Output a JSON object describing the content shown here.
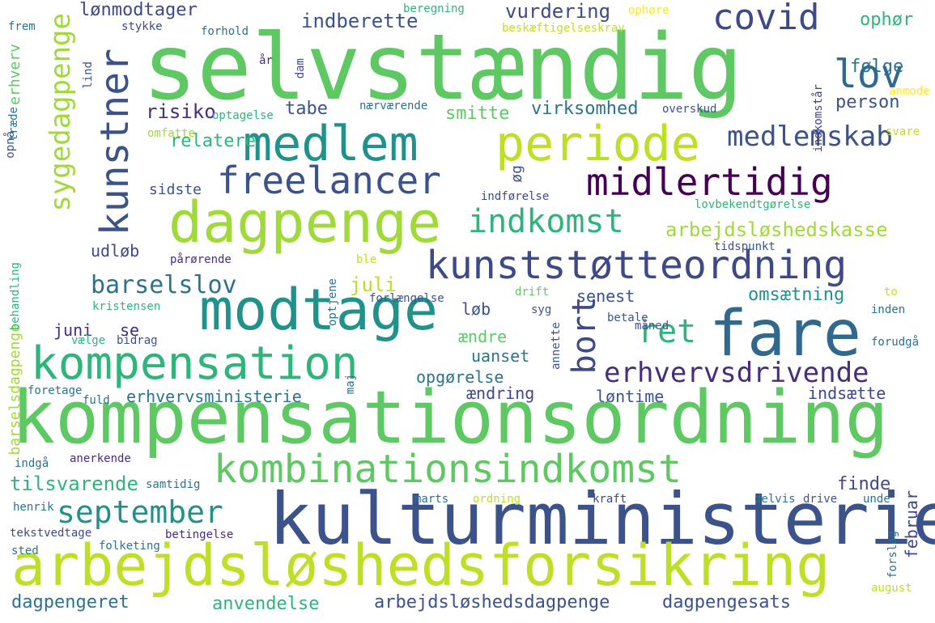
{
  "words": [
    {
      "t": "selvstændig",
      "c": "#5ec962"
    },
    {
      "t": "kompensationsordning",
      "c": "#5ec962"
    },
    {
      "t": "kulturministerie",
      "c": "#3b528b"
    },
    {
      "t": "arbejdsløshedsforsikring",
      "c": "#bddf26"
    },
    {
      "t": "modtage",
      "c": "#21918c"
    },
    {
      "t": "fare",
      "c": "#31688e"
    },
    {
      "t": "dagpenge",
      "c": "#a0da39"
    },
    {
      "t": "medlem",
      "c": "#21918c"
    },
    {
      "t": "periode",
      "c": "#bddf26"
    },
    {
      "t": "kombinationsindkomst",
      "c": "#5ec962"
    },
    {
      "t": "kunststøtteordning",
      "c": "#3e4989"
    },
    {
      "t": "kompensation",
      "c": "#2fb47c"
    },
    {
      "t": "freelancer",
      "c": "#3b528b"
    },
    {
      "t": "midlertidig",
      "c": "#440154"
    },
    {
      "t": "covid",
      "c": "#3e4989"
    },
    {
      "t": "lov",
      "c": "#31688e"
    },
    {
      "t": "kunstner",
      "c": "#3b528b"
    },
    {
      "t": "sygedagpenge",
      "c": "#a0da39"
    },
    {
      "t": "september",
      "c": "#21918c"
    },
    {
      "t": "erhvervsdrivende",
      "c": "#472d7b"
    },
    {
      "t": "medlemskab",
      "c": "#3b528b"
    },
    {
      "t": "indkomst",
      "c": "#2fb47c"
    },
    {
      "t": "barselslov",
      "c": "#2c728e"
    },
    {
      "t": "ret",
      "c": "#2fb47c"
    },
    {
      "t": "bort",
      "c": "#3e4989"
    },
    {
      "t": "arbejdsløshedskasse",
      "c": "#a0da39"
    },
    {
      "t": "tilsvarende",
      "c": "#2fb47c"
    },
    {
      "t": "arbejdsløshedsdagpenge",
      "c": "#3b528b"
    },
    {
      "t": "dagpengesats",
      "c": "#3b528b"
    },
    {
      "t": "dagpengeret",
      "c": "#2c728e"
    },
    {
      "t": "anvendelse",
      "c": "#2fb47c"
    },
    {
      "t": "erhvervsministerie",
      "c": "#2c728e"
    },
    {
      "t": "vurdering",
      "c": "#3e4989"
    },
    {
      "t": "indberette",
      "c": "#3b528b"
    },
    {
      "t": "lønmodtager",
      "c": "#3e4989"
    },
    {
      "t": "virksomhed",
      "c": "#2c728e"
    },
    {
      "t": "risiko",
      "c": "#472d7b"
    },
    {
      "t": "tabe",
      "c": "#3b528b"
    },
    {
      "t": "smitte",
      "c": "#5ec962"
    },
    {
      "t": "relatere",
      "c": "#2fb47c"
    },
    {
      "t": "sidste",
      "c": "#3b528b"
    },
    {
      "t": "udløb",
      "c": "#3e4989"
    },
    {
      "t": "juli",
      "c": "#bddf26"
    },
    {
      "t": "løb",
      "c": "#3b528b"
    },
    {
      "t": "senest",
      "c": "#3b528b"
    },
    {
      "t": "omsætning",
      "c": "#21918c"
    },
    {
      "t": "juni",
      "c": "#472d7b"
    },
    {
      "t": "se",
      "c": "#472d7b"
    },
    {
      "t": "ændre",
      "c": "#5ec962"
    },
    {
      "t": "uanset",
      "c": "#2c728e"
    },
    {
      "t": "opgørelse",
      "c": "#2c728e"
    },
    {
      "t": "ændring",
      "c": "#3e4989"
    },
    {
      "t": "løntime",
      "c": "#3b528b"
    },
    {
      "t": "indsætte",
      "c": "#3e4989"
    },
    {
      "t": "finde",
      "c": "#3e4989"
    },
    {
      "t": "februar",
      "c": "#3e4989"
    },
    {
      "t": "ophør",
      "c": "#2fb47c"
    },
    {
      "t": "følge",
      "c": "#2c728e"
    },
    {
      "t": "person",
      "c": "#3b528b"
    },
    {
      "t": "barselsdagpenge",
      "c": "#a0da39"
    },
    {
      "t": "erhverv",
      "c": "#5ec962"
    },
    {
      "t": "beregning",
      "c": "#2fb47c"
    },
    {
      "t": "ophøre",
      "c": "#fde725"
    },
    {
      "t": "stykke",
      "c": "#3e4989"
    },
    {
      "t": "forhold",
      "c": "#2c728e"
    },
    {
      "t": "beskæftigelseskrav",
      "c": "#bddf26"
    },
    {
      "t": "frem",
      "c": "#2c728e"
    },
    {
      "t": "lind",
      "c": "#3b528b"
    },
    {
      "t": "år",
      "c": "#472d7b"
    },
    {
      "t": "dam",
      "c": "#3e4989"
    },
    {
      "t": "optagelse",
      "c": "#2fb47c"
    },
    {
      "t": "nærværende",
      "c": "#2c728e"
    },
    {
      "t": "overskud",
      "c": "#3b528b"
    },
    {
      "t": "anmode",
      "c": "#fde725"
    },
    {
      "t": "svare",
      "c": "#bddf26"
    },
    {
      "t": "træde",
      "c": "#2c728e"
    },
    {
      "t": "omfatte",
      "c": "#a0da39"
    },
    {
      "t": "opnå",
      "c": "#3b528b"
    },
    {
      "t": "indkomstår",
      "c": "#3e4989"
    },
    {
      "t": "indførelse",
      "c": "#3e4989"
    },
    {
      "t": "lovbekendtgørelse",
      "c": "#2fb47c"
    },
    {
      "t": "tidspunkt",
      "c": "#3b528b"
    },
    {
      "t": "øg",
      "c": "#3b528b"
    },
    {
      "t": "pårørende",
      "c": "#472d7b"
    },
    {
      "t": "ble",
      "c": "#bddf26"
    },
    {
      "t": "optjene",
      "c": "#2c728e"
    },
    {
      "t": "drift",
      "c": "#5ec962"
    },
    {
      "t": "to",
      "c": "#bddf26"
    },
    {
      "t": "inden",
      "c": "#2c728e"
    },
    {
      "t": "behandling",
      "c": "#2fb47c"
    },
    {
      "t": "kristensen",
      "c": "#2fb47c"
    },
    {
      "t": "forlængelse",
      "c": "#3b528b"
    },
    {
      "t": "syg",
      "c": "#3b528b"
    },
    {
      "t": "betale",
      "c": "#3b528b"
    },
    {
      "t": "måned",
      "c": "#3b528b"
    },
    {
      "t": "annette",
      "c": "#3b528b"
    },
    {
      "t": "forudgå",
      "c": "#2c728e"
    },
    {
      "t": "vælge",
      "c": "#2fb47c"
    },
    {
      "t": "bidrag",
      "c": "#3b528b"
    },
    {
      "t": "foretage",
      "c": "#2c728e"
    },
    {
      "t": "fuld",
      "c": "#2c728e"
    },
    {
      "t": "maj",
      "c": "#2c728e"
    },
    {
      "t": "indgå",
      "c": "#2c728e"
    },
    {
      "t": "anerkende",
      "c": "#472d7b"
    },
    {
      "t": "samtidig",
      "c": "#2c728e"
    },
    {
      "t": "marts",
      "c": "#2c728e"
    },
    {
      "t": "ordning",
      "c": "#bddf26"
    },
    {
      "t": "kraft",
      "c": "#3e4989"
    },
    {
      "t": "delvis",
      "c": "#2c728e"
    },
    {
      "t": "drive",
      "c": "#3b528b"
    },
    {
      "t": "unde",
      "c": "#2c728e"
    },
    {
      "t": "henrik",
      "c": "#2c728e"
    },
    {
      "t": "tekstvedtage",
      "c": "#3e4989"
    },
    {
      "t": "betingelse",
      "c": "#472d7b"
    },
    {
      "t": "folketing",
      "c": "#2c728e"
    },
    {
      "t": "sted",
      "c": "#2c728e"
    },
    {
      "t": "forslag",
      "c": "#2c728e"
    },
    {
      "t": "august",
      "c": "#bddf26"
    }
  ]
}
